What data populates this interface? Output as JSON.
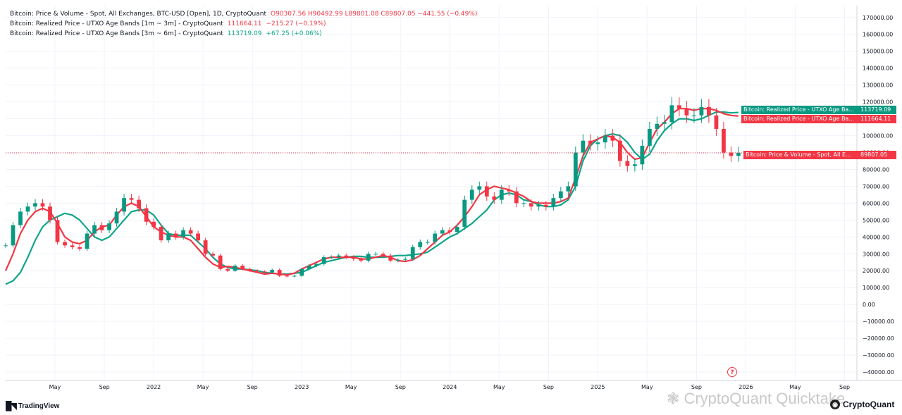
{
  "legend": {
    "price_title": "Bitcoin: Price & Volume - Spot, All Exchanges, BTC-USD [Open], 1D, CryptoQuant",
    "ohlc": "O90307.56  H90492.99  L89801.08  C89807.05  −441.55 (−0.49%)",
    "band1_title": "Bitcoin: Realized Price - UTXO Age Bands [1m ~ 3m] - CryptoQuant",
    "band1_value": "111664.11",
    "band1_change": "−215.27 (−0.19%)",
    "band2_title": "Bitcoin: Realized Price - UTXO Age Bands [3m ~ 6m] - CryptoQuant",
    "band2_value": "113719.09",
    "band2_change": "+67.25 (+0.06%)"
  },
  "right_labels": {
    "band2_label": "Bitcoin: Realized Price - UTXO Age Ba...",
    "band2_price": "113719.09",
    "band1_label": "Bitcoin: Realized Price - UTXO Age Ba...",
    "band1_price": "111664.11",
    "price_label": "Bitcoin: Price & Volume - Spot, All E...",
    "price_price": "89807.05"
  },
  "footer": {
    "tradingview": "TradingView",
    "watermark": "CryptoQuant Quicktake",
    "cryptoquant": "CryptoQuant",
    "help": "?"
  },
  "colors": {
    "up": "#089981",
    "down": "#f23645",
    "band1": "#f23645",
    "band2": "#0ea58a",
    "grid": "#f0f3fa"
  },
  "chart_data": {
    "type": "line",
    "y_ticks": [
      "170000.00",
      "160000.00",
      "150000.00",
      "140000.00",
      "130000.00",
      "120000.00",
      "110000.00",
      "100000.00",
      "90000.00",
      "80000.00",
      "70000.00",
      "60000.00",
      "50000.00",
      "40000.00",
      "30000.00",
      "20000.00",
      "10000.00",
      "0.00",
      "−10000.00",
      "−20000.00",
      "−30000.00",
      "−40000.00"
    ],
    "y_tick_values": [
      170000,
      160000,
      150000,
      140000,
      130000,
      120000,
      110000,
      100000,
      90000,
      80000,
      70000,
      60000,
      50000,
      40000,
      30000,
      20000,
      10000,
      0,
      -10000,
      -20000,
      -30000,
      -40000
    ],
    "ylim": [
      -45000,
      177000
    ],
    "xlim": [
      2021.0,
      2026.75
    ],
    "x_ticks": [
      {
        "t": 2021.333,
        "label": "May"
      },
      {
        "t": 2021.667,
        "label": "Sep"
      },
      {
        "t": 2022.0,
        "label": "2022"
      },
      {
        "t": 2022.333,
        "label": "May"
      },
      {
        "t": 2022.667,
        "label": "Sep"
      },
      {
        "t": 2023.0,
        "label": "2023"
      },
      {
        "t": 2023.333,
        "label": "May"
      },
      {
        "t": 2023.667,
        "label": "Sep"
      },
      {
        "t": 2024.0,
        "label": "2024"
      },
      {
        "t": 2024.333,
        "label": "May"
      },
      {
        "t": 2024.667,
        "label": "Sep"
      },
      {
        "t": 2025.0,
        "label": "2025"
      },
      {
        "t": 2025.333,
        "label": "May"
      },
      {
        "t": 2025.667,
        "label": "Sep"
      },
      {
        "t": 2026.0,
        "label": "2026"
      },
      {
        "t": 2026.333,
        "label": "May"
      },
      {
        "t": 2026.667,
        "label": "Sep"
      }
    ],
    "last_price_line": 89807.05,
    "series": [
      {
        "name": "Bitcoin: Price & Volume - Spot, All Exchanges, BTC-USD [Open]",
        "kind": "candles",
        "x": [
          2021.0,
          2021.05,
          2021.1,
          2021.15,
          2021.2,
          2021.25,
          2021.3,
          2021.35,
          2021.4,
          2021.45,
          2021.5,
          2021.55,
          2021.6,
          2021.65,
          2021.7,
          2021.75,
          2021.8,
          2021.85,
          2021.9,
          2021.95,
          2022.0,
          2022.05,
          2022.1,
          2022.15,
          2022.2,
          2022.25,
          2022.3,
          2022.35,
          2022.4,
          2022.45,
          2022.5,
          2022.55,
          2022.6,
          2022.65,
          2022.7,
          2022.75,
          2022.8,
          2022.85,
          2022.9,
          2022.95,
          2023.0,
          2023.05,
          2023.1,
          2023.15,
          2023.2,
          2023.25,
          2023.3,
          2023.35,
          2023.4,
          2023.45,
          2023.5,
          2023.55,
          2023.6,
          2023.65,
          2023.7,
          2023.75,
          2023.8,
          2023.85,
          2023.9,
          2023.95,
          2024.0,
          2024.05,
          2024.1,
          2024.15,
          2024.2,
          2024.25,
          2024.3,
          2024.35,
          2024.4,
          2024.45,
          2024.5,
          2024.55,
          2024.6,
          2024.65,
          2024.7,
          2024.75,
          2024.8,
          2024.85,
          2024.9,
          2024.95,
          2025.0,
          2025.05,
          2025.1,
          2025.15,
          2025.2,
          2025.25,
          2025.3,
          2025.35,
          2025.4,
          2025.45,
          2025.5,
          2025.55,
          2025.6,
          2025.65,
          2025.7,
          2025.75,
          2025.8,
          2025.85,
          2025.9,
          2025.95
        ],
        "y": [
          35000,
          47000,
          55000,
          58000,
          60000,
          58000,
          50000,
          37000,
          35000,
          34000,
          33000,
          42000,
          47000,
          44000,
          48000,
          55000,
          63000,
          62000,
          57000,
          49000,
          46000,
          38000,
          42000,
          40000,
          44000,
          42000,
          38000,
          30000,
          29000,
          21000,
          20000,
          23000,
          21000,
          20000,
          19500,
          19000,
          20500,
          17000,
          16800,
          17000,
          21000,
          23000,
          24000,
          28000,
          28000,
          29000,
          28000,
          27000,
          26000,
          30000,
          30000,
          29000,
          26000,
          26500,
          27000,
          34000,
          37000,
          37000,
          42000,
          44000,
          43000,
          46000,
          62000,
          68000,
          70000,
          64000,
          62000,
          68000,
          67000,
          60000,
          60000,
          58000,
          59000,
          58000,
          63000,
          67000,
          70000,
          90000,
          97000,
          95000,
          96000,
          100000,
          97000,
          85000,
          82000,
          83000,
          94000,
          104000,
          107000,
          108000,
          118000,
          116000,
          112000,
          112000,
          117000,
          112000,
          104000,
          90000,
          88000,
          89807
        ]
      },
      {
        "name": "Bitcoin: Realized Price - UTXO Age Bands [1m ~ 3m]",
        "kind": "line",
        "x": [
          2021.0,
          2021.05,
          2021.1,
          2021.15,
          2021.2,
          2021.25,
          2021.3,
          2021.35,
          2021.4,
          2021.45,
          2021.5,
          2021.55,
          2021.6,
          2021.65,
          2021.7,
          2021.75,
          2021.8,
          2021.85,
          2021.9,
          2021.95,
          2022.0,
          2022.05,
          2022.1,
          2022.15,
          2022.2,
          2022.25,
          2022.3,
          2022.35,
          2022.4,
          2022.45,
          2022.5,
          2022.55,
          2022.6,
          2022.65,
          2022.7,
          2022.75,
          2022.8,
          2022.85,
          2022.9,
          2022.95,
          2023.0,
          2023.05,
          2023.1,
          2023.15,
          2023.2,
          2023.25,
          2023.3,
          2023.35,
          2023.4,
          2023.45,
          2023.5,
          2023.55,
          2023.6,
          2023.65,
          2023.7,
          2023.75,
          2023.8,
          2023.85,
          2023.9,
          2023.95,
          2024.0,
          2024.05,
          2024.1,
          2024.15,
          2024.2,
          2024.25,
          2024.3,
          2024.35,
          2024.4,
          2024.45,
          2024.5,
          2024.55,
          2024.6,
          2024.65,
          2024.7,
          2024.75,
          2024.8,
          2024.85,
          2024.9,
          2024.95,
          2025.0,
          2025.05,
          2025.1,
          2025.15,
          2025.2,
          2025.25,
          2025.3,
          2025.35,
          2025.4,
          2025.45,
          2025.5,
          2025.55,
          2025.6,
          2025.65,
          2025.7,
          2025.75,
          2025.8,
          2025.85,
          2025.9,
          2025.95
        ],
        "y": [
          20000,
          30000,
          42000,
          50000,
          55000,
          57000,
          55000,
          48000,
          40000,
          37000,
          36000,
          38000,
          43000,
          46000,
          47000,
          53000,
          58000,
          60000,
          58000,
          52000,
          46000,
          43000,
          41000,
          40000,
          40000,
          38000,
          33000,
          28000,
          24000,
          22000,
          22500,
          22000,
          21000,
          20000,
          19000,
          18000,
          18500,
          18000,
          17500,
          18500,
          21000,
          23000,
          25000,
          27000,
          28000,
          28000,
          28000,
          28000,
          27000,
          27000,
          28000,
          29000,
          28000,
          26000,
          25500,
          26500,
          29000,
          33000,
          37000,
          41000,
          43000,
          47000,
          52000,
          58000,
          65000,
          68000,
          70000,
          69000,
          68000,
          66000,
          64000,
          61000,
          60000,
          60000,
          60000,
          61000,
          63000,
          75000,
          88000,
          96000,
          98000,
          100000,
          99000,
          96000,
          90000,
          86000,
          87000,
          96000,
          104000,
          108000,
          113000,
          116000,
          116000,
          115000,
          116000,
          116000,
          115000,
          113000,
          112000,
          111664
        ]
      },
      {
        "name": "Bitcoin: Realized Price - UTXO Age Bands [3m ~ 6m]",
        "kind": "line",
        "x": [
          2021.0,
          2021.05,
          2021.1,
          2021.15,
          2021.2,
          2021.25,
          2021.3,
          2021.35,
          2021.4,
          2021.45,
          2021.5,
          2021.55,
          2021.6,
          2021.65,
          2021.7,
          2021.75,
          2021.8,
          2021.85,
          2021.9,
          2021.95,
          2022.0,
          2022.05,
          2022.1,
          2022.15,
          2022.2,
          2022.25,
          2022.3,
          2022.35,
          2022.4,
          2022.45,
          2022.5,
          2022.55,
          2022.6,
          2022.65,
          2022.7,
          2022.75,
          2022.8,
          2022.85,
          2022.9,
          2022.95,
          2023.0,
          2023.05,
          2023.1,
          2023.15,
          2023.2,
          2023.25,
          2023.3,
          2023.35,
          2023.4,
          2023.45,
          2023.5,
          2023.55,
          2023.6,
          2023.65,
          2023.7,
          2023.75,
          2023.8,
          2023.85,
          2023.9,
          2023.95,
          2024.0,
          2024.05,
          2024.1,
          2024.15,
          2024.2,
          2024.25,
          2024.3,
          2024.35,
          2024.4,
          2024.45,
          2024.5,
          2024.55,
          2024.6,
          2024.65,
          2024.7,
          2024.75,
          2024.8,
          2024.85,
          2024.9,
          2024.95,
          2025.0,
          2025.05,
          2025.1,
          2025.15,
          2025.2,
          2025.25,
          2025.3,
          2025.35,
          2025.4,
          2025.45,
          2025.5,
          2025.55,
          2025.6,
          2025.65,
          2025.7,
          2025.75,
          2025.8,
          2025.85,
          2025.9,
          2025.95
        ],
        "y": [
          12000,
          14000,
          19000,
          28000,
          38000,
          46000,
          50000,
          52000,
          54000,
          53000,
          50000,
          45000,
          40000,
          38000,
          40000,
          45000,
          50000,
          55000,
          56000,
          56000,
          53000,
          47000,
          42000,
          41000,
          41000,
          41000,
          37000,
          33000,
          28000,
          24000,
          22000,
          21000,
          21000,
          20500,
          20000,
          19000,
          18500,
          18000,
          18000,
          18500,
          19000,
          21000,
          23000,
          25000,
          26000,
          27000,
          28000,
          28500,
          28500,
          28000,
          28000,
          28000,
          28500,
          29000,
          29000,
          29500,
          30000,
          31000,
          34000,
          37000,
          40000,
          42000,
          45000,
          48000,
          52000,
          56000,
          62000,
          65000,
          66000,
          65000,
          62000,
          61000,
          59000,
          58000,
          58000,
          59000,
          62000,
          70000,
          85000,
          94000,
          98000,
          100000,
          101000,
          100000,
          96000,
          90000,
          86000,
          89000,
          97000,
          103000,
          107000,
          110000,
          110000,
          109000,
          110000,
          112000,
          114000,
          114000,
          113500,
          113719
        ]
      }
    ]
  }
}
